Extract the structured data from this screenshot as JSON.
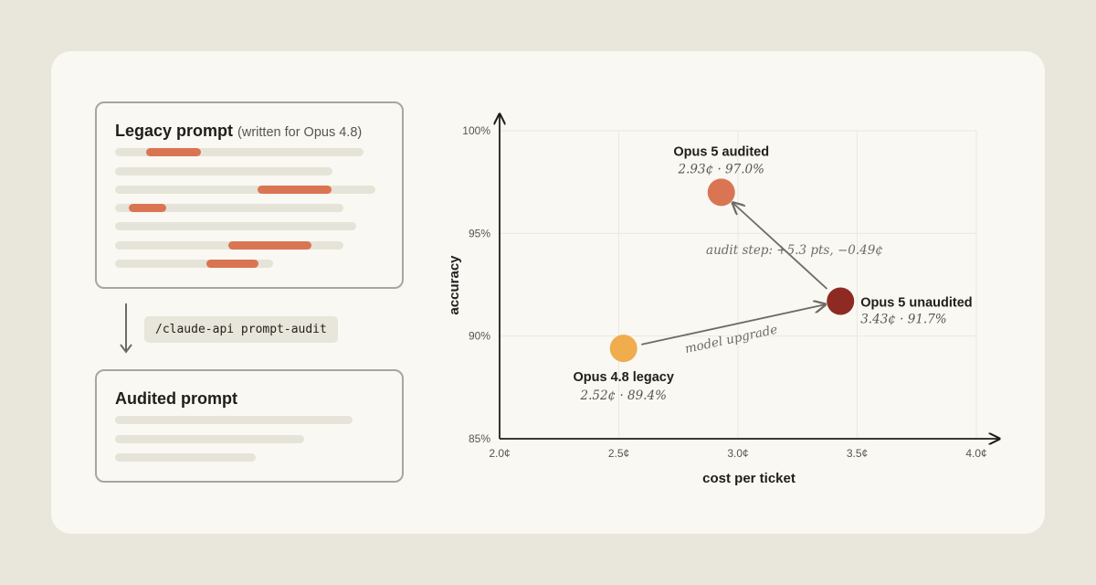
{
  "legacy_box": {
    "title": "Legacy prompt",
    "subtitle": "(written for Opus 4.8)"
  },
  "command": "/claude-api prompt-audit",
  "audited_box": {
    "title": "Audited prompt"
  },
  "colors": {
    "background": "#e9e7dc",
    "card": "#f9f8f3",
    "line": "#e6e3d8",
    "highlight": "#da7553",
    "legacy_point": "#efad4e",
    "unaudited_point": "#8e2a22",
    "audited_point": "#da7553",
    "arrow": "#6d6b65"
  },
  "chart_data": {
    "type": "scatter",
    "xlabel": "cost per ticket",
    "ylabel": "accuracy",
    "xlim": [
      2.0,
      4.0
    ],
    "ylim": [
      85,
      100
    ],
    "x_ticks": [
      2.0,
      2.5,
      3.0,
      3.5,
      4.0
    ],
    "x_tick_labels": [
      "2.0¢",
      "2.5¢",
      "3.0¢",
      "3.5¢",
      "4.0¢"
    ],
    "y_ticks": [
      85,
      90,
      95,
      100
    ],
    "y_tick_labels": [
      "85%",
      "90%",
      "95%",
      "100%"
    ],
    "grid": true,
    "points": [
      {
        "name": "Opus 4.8 legacy",
        "x": 2.52,
        "y": 89.4,
        "label": "2.52¢ · 89.4%",
        "color": "#efad4e"
      },
      {
        "name": "Opus 5 unaudited",
        "x": 3.43,
        "y": 91.7,
        "label": "3.43¢ · 91.7%",
        "color": "#8e2a22"
      },
      {
        "name": "Opus 5 audited",
        "x": 2.93,
        "y": 97.0,
        "label": "2.93¢ · 97.0%",
        "color": "#da7553"
      }
    ],
    "annotations": [
      {
        "text": "model upgrade",
        "from": "Opus 4.8 legacy",
        "to": "Opus 5 unaudited"
      },
      {
        "text": "audit step: +5.3 pts, −0.49¢",
        "from": "Opus 5 unaudited",
        "to": "Opus 5 audited"
      }
    ]
  }
}
